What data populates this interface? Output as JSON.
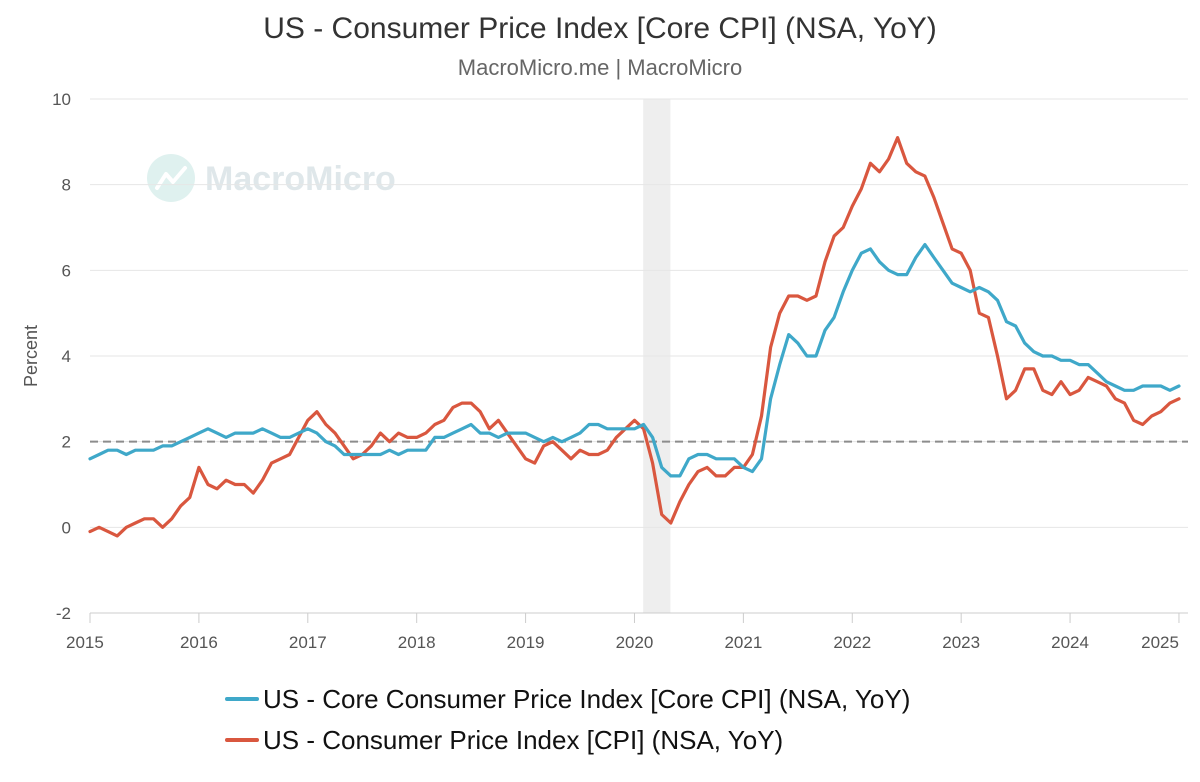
{
  "chart_data": {
    "type": "line",
    "title": "US - Consumer Price Index [Core CPI] (NSA, YoY)",
    "subtitle": "MacroMicro.me | MacroMicro",
    "watermark": "MacroMicro",
    "xlabel": "",
    "ylabel": "Percent",
    "xlim": [
      2015.0,
      2025.083
    ],
    "ylim": [
      -2,
      10
    ],
    "x_ticks": [
      "2015",
      "2016",
      "2017",
      "2018",
      "2019",
      "2020",
      "2021",
      "2022",
      "2023",
      "2024",
      "2025"
    ],
    "y_ticks": [
      "10",
      "8",
      "6",
      "4",
      "2",
      "0",
      "-2"
    ],
    "grid": true,
    "legend_position": "bottom",
    "reference_line": {
      "value": 2,
      "style": "dashed",
      "color": "#8c8c8c"
    },
    "recession_band": {
      "start": 2020.08,
      "end": 2020.33,
      "color": "#eeeeee"
    },
    "series": [
      {
        "name": "US - Core Consumer Price Index [Core CPI] (NSA, YoY)",
        "color": "#3fa8c9",
        "start": 2015.0,
        "step": 0.083333,
        "values": [
          1.6,
          1.7,
          1.8,
          1.8,
          1.7,
          1.8,
          1.8,
          1.8,
          1.9,
          1.9,
          2.0,
          2.1,
          2.2,
          2.3,
          2.2,
          2.1,
          2.2,
          2.2,
          2.2,
          2.3,
          2.2,
          2.1,
          2.1,
          2.2,
          2.3,
          2.2,
          2.0,
          1.9,
          1.7,
          1.7,
          1.7,
          1.7,
          1.7,
          1.8,
          1.7,
          1.8,
          1.8,
          1.8,
          2.1,
          2.1,
          2.2,
          2.3,
          2.4,
          2.2,
          2.2,
          2.1,
          2.2,
          2.2,
          2.2,
          2.1,
          2.0,
          2.1,
          2.0,
          2.1,
          2.2,
          2.4,
          2.4,
          2.3,
          2.3,
          2.3,
          2.3,
          2.4,
          2.1,
          1.4,
          1.2,
          1.2,
          1.6,
          1.7,
          1.7,
          1.6,
          1.6,
          1.6,
          1.4,
          1.3,
          1.6,
          3.0,
          3.8,
          4.5,
          4.3,
          4.0,
          4.0,
          4.6,
          4.9,
          5.5,
          6.0,
          6.4,
          6.5,
          6.2,
          6.0,
          5.9,
          5.9,
          6.3,
          6.6,
          6.3,
          6.0,
          5.7,
          5.6,
          5.5,
          5.6,
          5.5,
          5.3,
          4.8,
          4.7,
          4.3,
          4.1,
          4.0,
          4.0,
          3.9,
          3.9,
          3.8,
          3.8,
          3.6,
          3.4,
          3.3,
          3.2,
          3.2,
          3.3,
          3.3,
          3.3,
          3.2,
          3.3
        ]
      },
      {
        "name": "US - Consumer Price Index [CPI] (NSA, YoY)",
        "color": "#d9573f",
        "start": 2015.0,
        "step": 0.083333,
        "values": [
          -0.1,
          0.0,
          -0.1,
          -0.2,
          0.0,
          0.1,
          0.2,
          0.2,
          0.0,
          0.2,
          0.5,
          0.7,
          1.4,
          1.0,
          0.9,
          1.1,
          1.0,
          1.0,
          0.8,
          1.1,
          1.5,
          1.6,
          1.7,
          2.1,
          2.5,
          2.7,
          2.4,
          2.2,
          1.9,
          1.6,
          1.7,
          1.9,
          2.2,
          2.0,
          2.2,
          2.1,
          2.1,
          2.2,
          2.4,
          2.5,
          2.8,
          2.9,
          2.9,
          2.7,
          2.3,
          2.5,
          2.2,
          1.9,
          1.6,
          1.5,
          1.9,
          2.0,
          1.8,
          1.6,
          1.8,
          1.7,
          1.7,
          1.8,
          2.1,
          2.3,
          2.5,
          2.3,
          1.5,
          0.3,
          0.1,
          0.6,
          1.0,
          1.3,
          1.4,
          1.2,
          1.2,
          1.4,
          1.4,
          1.7,
          2.6,
          4.2,
          5.0,
          5.4,
          5.4,
          5.3,
          5.4,
          6.2,
          6.8,
          7.0,
          7.5,
          7.9,
          8.5,
          8.3,
          8.6,
          9.1,
          8.5,
          8.3,
          8.2,
          7.7,
          7.1,
          6.5,
          6.4,
          6.0,
          5.0,
          4.9,
          4.0,
          3.0,
          3.2,
          3.7,
          3.7,
          3.2,
          3.1,
          3.4,
          3.1,
          3.2,
          3.5,
          3.4,
          3.3,
          3.0,
          2.9,
          2.5,
          2.4,
          2.6,
          2.7,
          2.9,
          3.0
        ]
      }
    ]
  }
}
